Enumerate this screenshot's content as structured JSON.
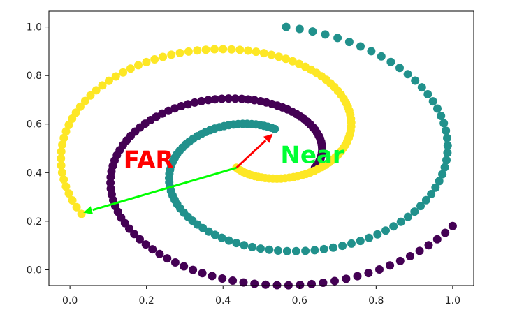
{
  "chart_data": {
    "type": "scatter",
    "title": "",
    "xlabel": "",
    "ylabel": "",
    "xlim": [
      -0.055,
      1.055
    ],
    "ylim": [
      -0.065,
      1.065
    ],
    "x_ticks": [
      "0.0",
      "0.2",
      "0.4",
      "0.6",
      "0.8",
      "1.0"
    ],
    "y_ticks": [
      "0.0",
      "0.2",
      "0.4",
      "0.6",
      "0.8",
      "1.0"
    ],
    "grid": false,
    "legend": "none",
    "series": [
      {
        "color": "#440154",
        "spiral": {
          "start_point": [
            0.64,
            0.42
          ],
          "end_point": [
            1.0,
            0.18
          ],
          "center": [
            0.49,
            0.43
          ],
          "turns": 1.12
        },
        "point_count": 100
      },
      {
        "color": "#21918c",
        "spiral": {
          "start_point": [
            0.535,
            0.58
          ],
          "end_point": [
            0.565,
            1.0
          ],
          "center": [
            0.52,
            0.44
          ],
          "turns": 1.22
        },
        "point_count": 100
      },
      {
        "color": "#fde725",
        "spiral": {
          "start_point": [
            0.435,
            0.42
          ],
          "end_point": [
            0.03,
            0.23
          ],
          "center": [
            0.47,
            0.53
          ],
          "turns": 1.0
        },
        "point_count": 100
      }
    ],
    "annotations": [
      {
        "text": "FAR",
        "color": "#ff0000",
        "at": [
          0.14,
          0.42
        ]
      },
      {
        "text": "Near",
        "color": "#00ff33",
        "at": [
          0.55,
          0.44
        ]
      }
    ],
    "arrows": [
      {
        "from": [
          0.435,
          0.42
        ],
        "to": [
          0.53,
          0.56
        ],
        "color": "#ff0000"
      },
      {
        "from": [
          0.435,
          0.42
        ],
        "to": [
          0.035,
          0.235
        ],
        "color": "#00ff00"
      }
    ]
  }
}
